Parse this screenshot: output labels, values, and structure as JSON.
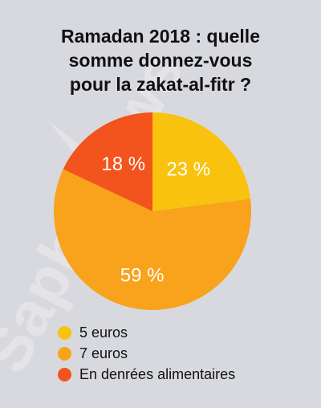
{
  "watermark_text": "Saphirnews",
  "chart_data": {
    "type": "pie",
    "title_lines": [
      "Ramadan 2018 : quelle",
      "somme donnez-vous",
      "pour la zakat-al-fitr ?"
    ],
    "slices": [
      {
        "label": "5 euros",
        "value": 23,
        "display": "23 %",
        "color": "#f9c20e"
      },
      {
        "label": "7 euros",
        "value": 59,
        "display": "59 %",
        "color": "#f9a21b"
      },
      {
        "label": "En denrées alimentaires",
        "value": 18,
        "display": "18 %",
        "color": "#f3531d"
      }
    ],
    "legend_position": "bottom-left"
  }
}
